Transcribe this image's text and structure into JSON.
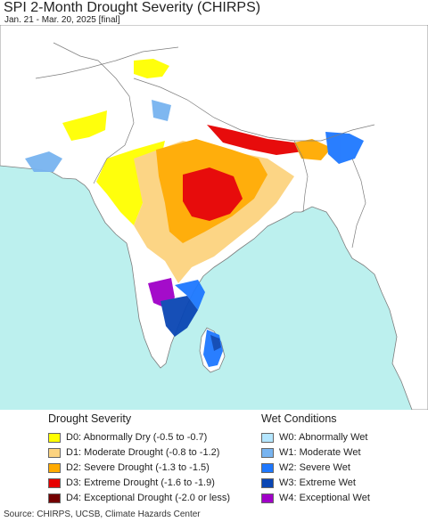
{
  "title": "SPI 2-Month Drought Severity (CHIRPS)",
  "subtitle": "Jan. 21 - Mar. 20, 2025 [final]",
  "legend": {
    "drought_heading": "Drought Severity",
    "wet_heading": "Wet Conditions",
    "drought": [
      {
        "label": "D0: Abnormally Dry (-0.5 to -0.7)",
        "color": "#ffff00"
      },
      {
        "label": "D1: Moderate Drought (-0.8 to -1.2)",
        "color": "#fcd37f"
      },
      {
        "label": "D2: Severe Drought (-1.3 to -1.5)",
        "color": "#ffaa00"
      },
      {
        "label": "D3: Extreme Drought (-1.6 to -1.9)",
        "color": "#e60000"
      },
      {
        "label": "D4: Exceptional Drought (-2.0 or less)",
        "color": "#730000"
      }
    ],
    "wet": [
      {
        "label": "W0: Abnormally Wet",
        "color": "#b4e6ff"
      },
      {
        "label": "W1: Moderate Wet",
        "color": "#78b4f0"
      },
      {
        "label": "W2: Severe Wet",
        "color": "#1e78ff"
      },
      {
        "label": "W3: Extreme Wet",
        "color": "#0a46b4"
      },
      {
        "label": "W4: Exceptional Wet",
        "color": "#a000c8"
      }
    ]
  },
  "source": "Source: CHIRPS, UCSB, Climate Hazards Center",
  "colors": {
    "ocean": "#bcf0ee",
    "land": "#ffffff",
    "border": "#7d7d7d"
  }
}
